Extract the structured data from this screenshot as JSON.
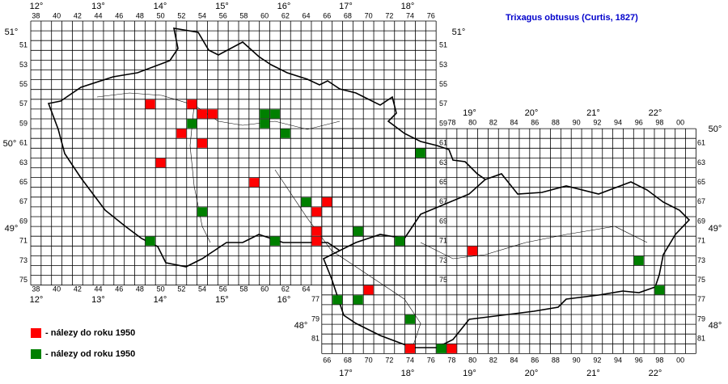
{
  "title": "Trixagus obtusus (Curtis, 1827)",
  "grid_labels": {
    "west_top": [
      "38",
      "40",
      "42",
      "44",
      "46",
      "48",
      "50",
      "52",
      "54",
      "56",
      "58",
      "60",
      "62",
      "64",
      "66",
      "68",
      "70",
      "72",
      "74",
      "76"
    ],
    "west_bottom": [
      "38",
      "40",
      "42",
      "44",
      "46",
      "48",
      "50",
      "52",
      "54",
      "56",
      "58",
      "60",
      "62",
      "64"
    ],
    "west_rows": [
      "51",
      "53",
      "55",
      "57",
      "59",
      "61",
      "63",
      "65",
      "67",
      "69",
      "71",
      "73",
      "75"
    ],
    "east_top": [
      "78",
      "80",
      "82",
      "84",
      "86",
      "88",
      "90",
      "92",
      "94",
      "96",
      "98",
      "00"
    ],
    "east_bottom": [
      "66",
      "68",
      "70",
      "72",
      "74",
      "76",
      "78",
      "80",
      "82",
      "84",
      "86",
      "88",
      "90",
      "92",
      "94",
      "96",
      "98",
      "00"
    ],
    "east_rows": [
      "61",
      "63",
      "65",
      "67",
      "69",
      "71",
      "73",
      "75",
      "77",
      "79",
      "81"
    ],
    "east_left_rows": [
      "77",
      "79",
      "81"
    ]
  },
  "longitude_labels": {
    "west_top": [
      "12°",
      "13°",
      "14°",
      "15°",
      "16°",
      "17°",
      "18°"
    ],
    "west_bottom": [
      "12°",
      "13°",
      "14°",
      "15°",
      "16°"
    ],
    "east_top": [
      "19°",
      "20°",
      "21°",
      "22°"
    ],
    "east_bottom": [
      "17°",
      "18°",
      "19°",
      "20°",
      "21°",
      "22°"
    ]
  },
  "latitude_labels": {
    "left": [
      "51°",
      "50°",
      "49°",
      "48°"
    ],
    "right": [
      "51°",
      "50°",
      "49°",
      "48°"
    ]
  },
  "legend": [
    {
      "label": "- nálezy do roku 1950",
      "color": "#ff0000"
    },
    {
      "label": "- nálezy od roku 1950",
      "color": "#008000"
    }
  ],
  "records": [
    {
      "square": [
        49,
        57
      ],
      "legend": 0
    },
    {
      "square": [
        53,
        57
      ],
      "legend": 0
    },
    {
      "square": [
        54,
        58
      ],
      "legend": 0
    },
    {
      "square": [
        55,
        58
      ],
      "legend": 0
    },
    {
      "square": [
        53,
        59
      ],
      "legend": 1
    },
    {
      "square": [
        52,
        60
      ],
      "legend": 0
    },
    {
      "square": [
        60,
        58
      ],
      "legend": 1
    },
    {
      "square": [
        61,
        58
      ],
      "legend": 1
    },
    {
      "square": [
        60,
        59
      ],
      "legend": 1
    },
    {
      "square": [
        62,
        60
      ],
      "legend": 1
    },
    {
      "square": [
        54,
        61
      ],
      "legend": 0
    },
    {
      "square": [
        75,
        62
      ],
      "legend": 1
    },
    {
      "square": [
        50,
        63
      ],
      "legend": 0
    },
    {
      "square": [
        59,
        65
      ],
      "legend": 0
    },
    {
      "square": [
        64,
        67
      ],
      "legend": 1
    },
    {
      "square": [
        66,
        67
      ],
      "legend": 0
    },
    {
      "square": [
        65,
        68
      ],
      "legend": 0
    },
    {
      "square": [
        54,
        68
      ],
      "legend": 1
    },
    {
      "square": [
        65,
        70
      ],
      "legend": 0
    },
    {
      "square": [
        65,
        71
      ],
      "legend": 0
    },
    {
      "square": [
        49,
        71
      ],
      "legend": 1
    },
    {
      "square": [
        61,
        71
      ],
      "legend": 1
    },
    {
      "square": [
        69,
        70
      ],
      "legend": 1
    },
    {
      "square": [
        73,
        71
      ],
      "legend": 1
    },
    {
      "square": [
        80,
        72
      ],
      "legend": 0
    },
    {
      "square": [
        96,
        73
      ],
      "legend": 1
    },
    {
      "square": [
        98,
        76
      ],
      "legend": 1
    },
    {
      "square": [
        70,
        76
      ],
      "legend": 0
    },
    {
      "square": [
        67,
        77
      ],
      "legend": 1
    },
    {
      "square": [
        69,
        77
      ],
      "legend": 1
    },
    {
      "square": [
        74,
        79
      ],
      "legend": 1
    },
    {
      "square": [
        74,
        82
      ],
      "legend": 0
    },
    {
      "square": [
        77,
        82
      ],
      "legend": 1
    },
    {
      "square": [
        78,
        82
      ],
      "legend": 0
    }
  ]
}
